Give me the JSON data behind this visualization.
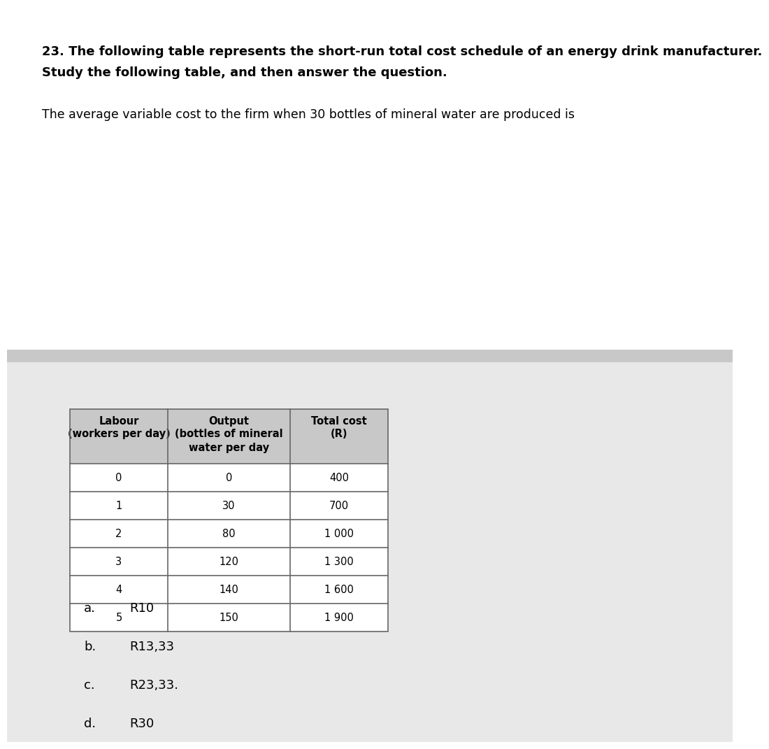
{
  "title_line1": "23. The following table represents the short-run total cost schedule of an energy drink manufacturer.",
  "title_line2": "Study the following table, and then answer the question.",
  "question_text": "The average variable cost to the firm when 30 bottles of mineral water are produced is",
  "header_row1": [
    "Labour",
    "Output",
    "Total cost"
  ],
  "header_row2": [
    "(workers per day)",
    "(bottles of mineral",
    "(R)"
  ],
  "header_row3": [
    "",
    "water per day",
    ""
  ],
  "table_data": [
    [
      "0",
      "0",
      "400"
    ],
    [
      "1",
      "30",
      "700"
    ],
    [
      "2",
      "80",
      "1 000"
    ],
    [
      "3",
      "120",
      "1 300"
    ],
    [
      "4",
      "140",
      "1 600"
    ],
    [
      "5",
      "150",
      "1 900"
    ]
  ],
  "options": [
    [
      "a.",
      "R10"
    ],
    [
      "b.",
      "R13,33"
    ],
    [
      "c.",
      "R23,33."
    ],
    [
      "d.",
      "R30"
    ]
  ],
  "bg_top": "#ffffff",
  "bg_bottom": "#e8e8e8",
  "divider_color": "#c8c8c8",
  "header_bg": "#c8c8c8",
  "table_line_color": "#666666",
  "text_color": "#000000",
  "title_fontsize": 13.0,
  "question_fontsize": 12.5,
  "table_header_fontsize": 10.5,
  "table_data_fontsize": 10.5,
  "options_fontsize": 13.0
}
